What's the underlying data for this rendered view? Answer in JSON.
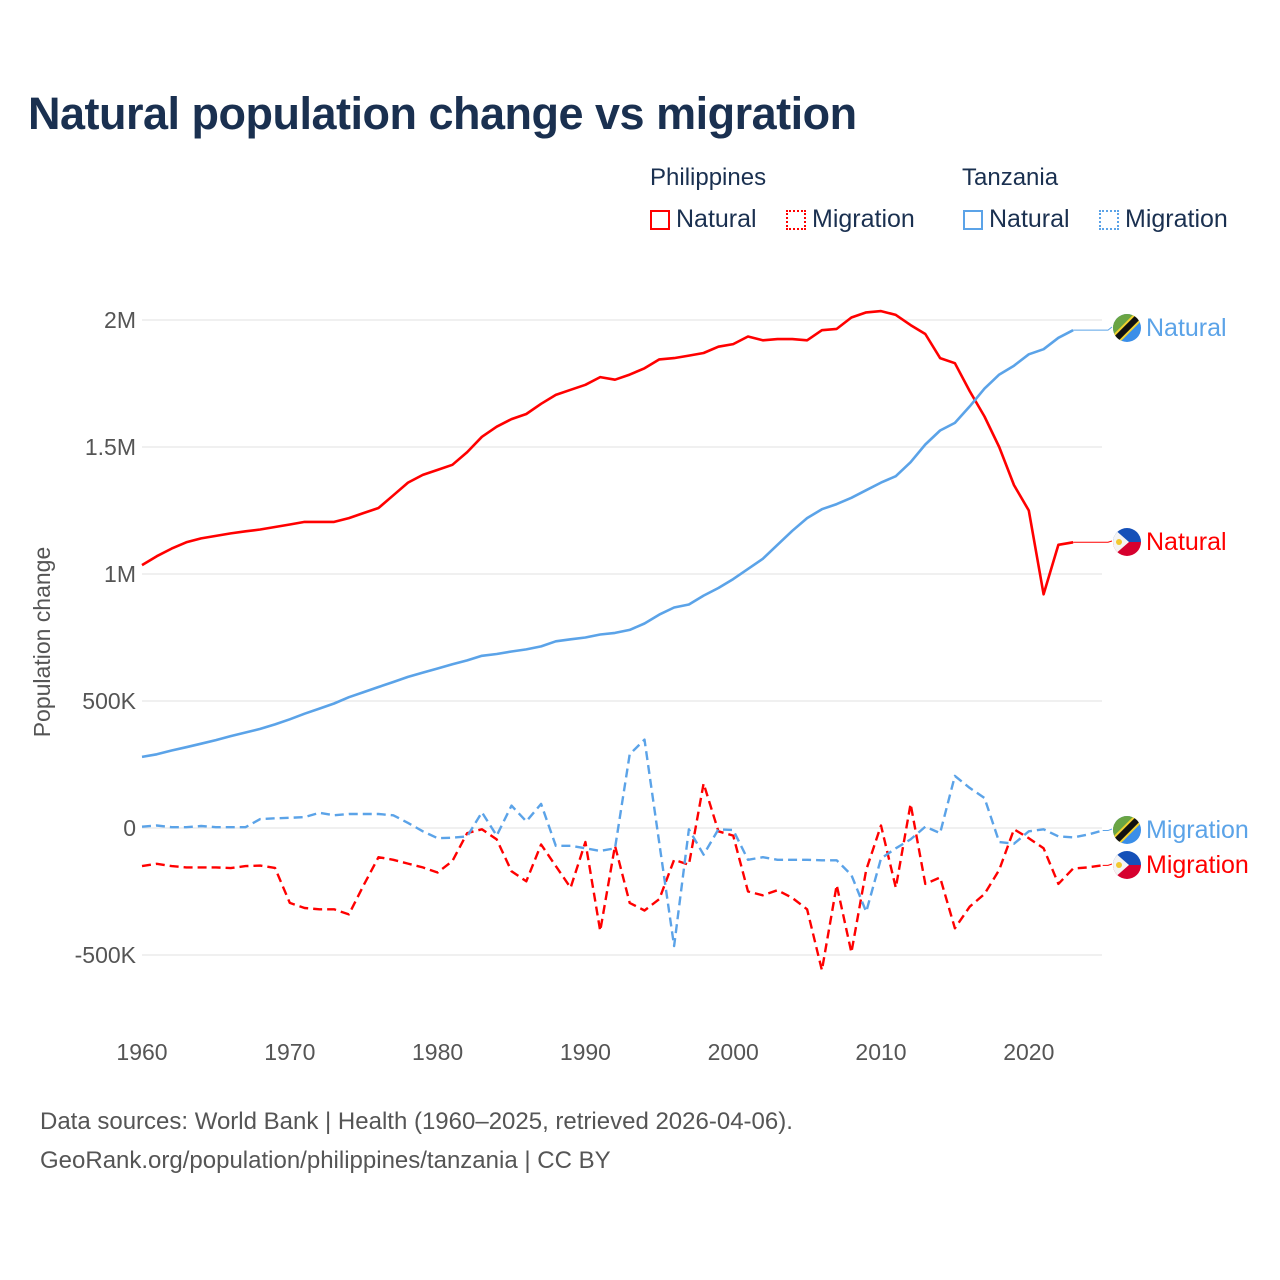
{
  "title": "Natural population change vs migration",
  "legend": {
    "groups": [
      {
        "name": "Philippines",
        "items": [
          "Natural",
          "Migration"
        ],
        "color": "#ff0000"
      },
      {
        "name": "Tanzania",
        "items": [
          "Natural",
          "Migration"
        ],
        "color": "#5ba3e8"
      }
    ]
  },
  "footer": {
    "line1": "Data sources: World Bank | Health (1960–2025, retrieved 2026-04-06).",
    "line2": "GeoRank.org/population/philippines/tanzania | CC BY"
  },
  "chart_data": {
    "type": "line",
    "title": "Natural population change vs migration",
    "xlabel": "",
    "ylabel": "Population change",
    "xlim": [
      1960,
      2025
    ],
    "ylim": [
      -600000,
      2100000
    ],
    "x_ticks": [
      1960,
      1970,
      1980,
      1990,
      2000,
      2010,
      2020
    ],
    "x_tick_labels": [
      "1960",
      "1970",
      "1980",
      "1990",
      "2000",
      "2010",
      "2020"
    ],
    "y_ticks": [
      2000000,
      1500000,
      1000000,
      500000,
      0,
      -500000
    ],
    "y_tick_labels": [
      "2M",
      "1.5M",
      "1M",
      "500K",
      "0",
      "-500K"
    ],
    "grid": true,
    "units": "thousands",
    "series": [
      {
        "name": "Philippines Natural",
        "end_label": "Natural",
        "flag": "philippines",
        "color": "#ff0000",
        "dash": false,
        "start": 1960,
        "values": [
          1035,
          1070,
          1100,
          1125,
          1140,
          1150,
          1160,
          1168,
          1175,
          1185,
          1195,
          1205,
          1205,
          1205,
          1220,
          1240,
          1260,
          1310,
          1360,
          1390,
          1410,
          1430,
          1480,
          1540,
          1580,
          1610,
          1630,
          1670,
          1705,
          1725,
          1745,
          1775,
          1765,
          1785,
          1810,
          1845,
          1850,
          1860,
          1870,
          1895,
          1905,
          1935,
          1920,
          1925,
          1925,
          1920,
          1960,
          1965,
          2010,
          2030,
          2035,
          2020,
          1980,
          1945,
          1850,
          1830,
          1720,
          1620,
          1500,
          1350,
          1250,
          920,
          1115,
          1125
        ]
      },
      {
        "name": "Tanzania Natural",
        "end_label": "Natural",
        "flag": "tanzania",
        "color": "#5ba3e8",
        "dash": false,
        "start": 1960,
        "values": [
          280,
          290,
          305,
          318,
          332,
          346,
          362,
          376,
          390,
          408,
          428,
          450,
          470,
          490,
          515,
          535,
          555,
          575,
          595,
          612,
          628,
          645,
          660,
          678,
          685,
          695,
          703,
          715,
          735,
          743,
          750,
          762,
          768,
          780,
          805,
          840,
          868,
          880,
          915,
          945,
          980,
          1020,
          1060,
          1115,
          1170,
          1220,
          1255,
          1275,
          1300,
          1330,
          1360,
          1385,
          1440,
          1510,
          1565,
          1595,
          1660,
          1730,
          1785,
          1820,
          1865,
          1885,
          1930,
          1960
        ]
      },
      {
        "name": "Philippines Migration",
        "end_label": "Migration",
        "flag": "philippines",
        "color": "#ff0000",
        "dash": true,
        "start": 1960,
        "values": [
          -150,
          -141,
          -150,
          -155,
          -155,
          -155,
          -158,
          -150,
          -148,
          -157,
          -295,
          -315,
          -320,
          -320,
          -340,
          -225,
          -115,
          -125,
          -140,
          -155,
          -175,
          -130,
          -20,
          -5,
          -45,
          -170,
          -210,
          -65,
          -150,
          -235,
          -55,
          -405,
          -70,
          -295,
          -325,
          -280,
          -125,
          -145,
          175,
          -13,
          -30,
          -250,
          -265,
          -245,
          -275,
          -320,
          -560,
          -225,
          -490,
          -165,
          10,
          -235,
          95,
          -220,
          -195,
          -395,
          -310,
          -260,
          -165,
          -5,
          -40,
          -80,
          -220,
          -160,
          -155,
          -147
        ]
      },
      {
        "name": "Tanzania Migration",
        "end_label": "Migration",
        "flag": "tanzania",
        "color": "#5ba3e8",
        "dash": true,
        "start": 1960,
        "values": [
          5,
          10,
          3,
          3,
          8,
          3,
          3,
          3,
          35,
          38,
          40,
          43,
          60,
          50,
          55,
          55,
          55,
          50,
          20,
          -13,
          -40,
          -38,
          -33,
          62,
          -30,
          88,
          26,
          95,
          -70,
          -70,
          -80,
          -90,
          -80,
          290,
          348,
          -60,
          -465,
          -5,
          -105,
          -5,
          -8,
          -125,
          -115,
          -125,
          -125,
          -125,
          -127,
          -127,
          -185,
          -330,
          -120,
          -80,
          -45,
          5,
          -20,
          205,
          158,
          118,
          -55,
          -62,
          -13,
          -5,
          -33,
          -37,
          -26,
          -10
        ]
      }
    ]
  }
}
